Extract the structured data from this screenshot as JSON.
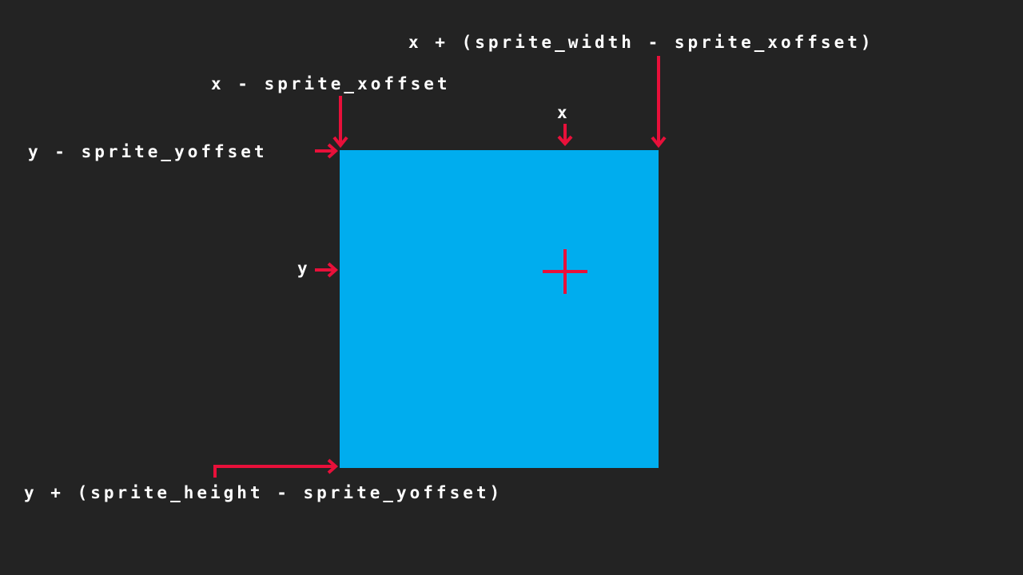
{
  "colors": {
    "background": "#232323",
    "sprite": "#00adee",
    "accent": "#e8103a",
    "text": "#ffffff"
  },
  "labels": {
    "right_edge": "x + (sprite_width - sprite_xoffset)",
    "left_edge": "x - sprite_xoffset",
    "origin_x": "x",
    "top_edge": "y - sprite_yoffset",
    "origin_y": "y",
    "bottom_edge": "y + (sprite_height - sprite_yoffset)"
  }
}
